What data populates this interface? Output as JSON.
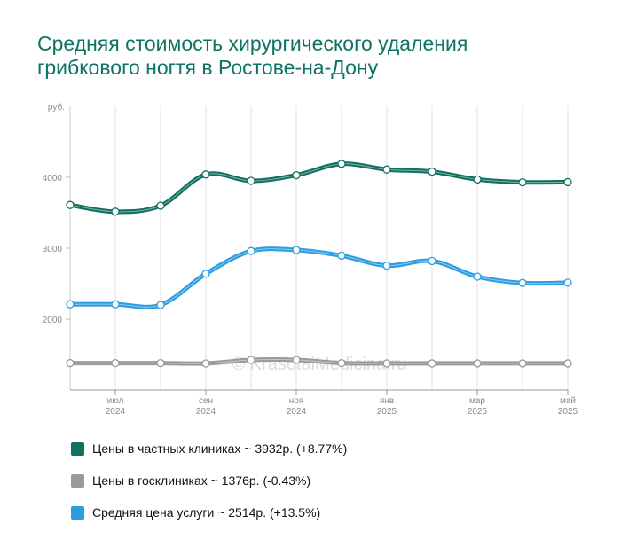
{
  "title_lines": [
    "Средняя стоимость хирургического удаления",
    "грибкового ногтя в Ростове-на-Дону"
  ],
  "watermark": "© KrasotaiMedicina.ru",
  "chart_data": {
    "type": "line",
    "title": "Средняя стоимость хирургического удаления грибкового ногтя в Ростове-на-Дону",
    "y_unit_label": "руб.",
    "y_ticks": [
      2000,
      3000,
      4000
    ],
    "ylim": [
      1000,
      5000
    ],
    "x": [
      "2024-06",
      "2024-07",
      "2024-08",
      "2024-09",
      "2024-10",
      "2024-11",
      "2024-12",
      "2025-01",
      "2025-02",
      "2025-03",
      "2025-04",
      "2025-05"
    ],
    "x_tick_labels": [
      {
        "month": "июл",
        "year": "2024"
      },
      {
        "month": "сен",
        "year": "2024"
      },
      {
        "month": "ноя",
        "year": "2024"
      },
      {
        "month": "янв",
        "year": "2025"
      },
      {
        "month": "мар",
        "year": "2025"
      },
      {
        "month": "май",
        "year": "2025"
      }
    ],
    "grid": true,
    "legend_position": "bottom",
    "series": [
      {
        "key": "private",
        "name": "Цены в частных клиниках ~ 3932р. (+8.77%)",
        "color": "#12705f",
        "values": [
          3610,
          3515,
          3600,
          4040,
          3950,
          4030,
          4190,
          4110,
          4080,
          3970,
          3930,
          3932
        ]
      },
      {
        "key": "public",
        "name": "Цены в госклиниках ~ 1376р. (-0.43%)",
        "color": "#9a9a9a",
        "values": [
          1380,
          1380,
          1380,
          1375,
          1425,
          1425,
          1380,
          1376,
          1376,
          1376,
          1376,
          1376
        ]
      },
      {
        "key": "average",
        "name": "Средняя цена услуги ~ 2514р. (+13.5%)",
        "color": "#2c9de0",
        "values": [
          2210,
          2210,
          2200,
          2640,
          2960,
          2975,
          2895,
          2755,
          2820,
          2600,
          2510,
          2514
        ]
      }
    ]
  }
}
